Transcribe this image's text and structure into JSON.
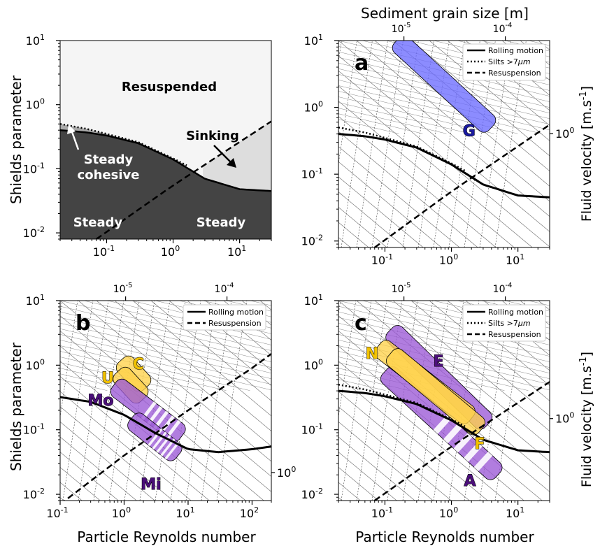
{
  "chart_data": [
    {
      "panel": "regime-diagram",
      "type": "area",
      "ylabel": "Shields parameter",
      "xscale": "log",
      "yscale": "log",
      "xlim": [
        0.02,
        30
      ],
      "ylim": [
        0.008,
        10
      ],
      "xticks": [
        "10^-1",
        "10^0",
        "10^1"
      ],
      "yticks": [
        "10^-2",
        "10^-1",
        "10^0",
        "10^1"
      ],
      "curves": [
        {
          "name": "Rolling motion",
          "style": "solid",
          "x": [
            0.02,
            0.05,
            0.1,
            0.3,
            1,
            3,
            10,
            30
          ],
          "y": [
            0.4,
            0.37,
            0.33,
            0.25,
            0.14,
            0.07,
            0.048,
            0.045
          ]
        },
        {
          "name": "Silts > 7μm",
          "style": "dotted",
          "x": [
            0.02,
            0.05,
            0.1,
            0.3,
            1,
            2
          ],
          "y": [
            0.5,
            0.42,
            0.35,
            0.26,
            0.145,
            0.1
          ]
        },
        {
          "name": "Resuspension",
          "style": "dashed",
          "x": [
            0.07,
            1,
            30
          ],
          "y": [
            0.008,
            0.055,
            0.55
          ]
        }
      ],
      "regions": [
        {
          "label": "Resuspended",
          "color": "#f5f5f5",
          "text_color": "#000000"
        },
        {
          "label": "Sinking",
          "color": "#dddddd",
          "text_color": "#000000"
        },
        {
          "label": "Steady cohesive",
          "color": "#a9a9a9",
          "text_color": "#ffffff"
        },
        {
          "label": "Steady",
          "color": "#444444",
          "text_color": "#ffffff"
        },
        {
          "label": "Steady",
          "color": "#444444",
          "text_color": "#ffffff"
        }
      ]
    },
    {
      "panel": "a",
      "type": "line",
      "top_xlabel": "Sediment grain size [m]",
      "right_ylabel": "Fluid velocity [m.s-1]",
      "right_tick": "10^0",
      "top_ticks": [
        "10^-5",
        "10^-4"
      ],
      "xscale": "log",
      "yscale": "log",
      "xlim": [
        0.02,
        30
      ],
      "ylim": [
        0.008,
        10
      ],
      "xticks": [
        "10^-1",
        "10^0",
        "10^1"
      ],
      "yticks": [
        "10^-2",
        "10^-1",
        "10^0",
        "10^1"
      ],
      "legend": {
        "placement": "top-right",
        "entries": [
          {
            "label": "Rolling motion",
            "style": "solid"
          },
          {
            "label": "Silts >7μm",
            "style": "dotted"
          },
          {
            "label": "Resuspension",
            "style": "dashed"
          }
        ]
      },
      "bands": [
        {
          "label": "G",
          "color": "#6b6bff",
          "x": [
            0.15,
            4
          ],
          "y": [
            10,
            0.5
          ]
        }
      ]
    },
    {
      "panel": "b",
      "type": "line",
      "ylabel": "Shields parameter",
      "xlabel": "Particle Reynolds number",
      "right_tick": "10^0",
      "top_ticks": [
        "10^-5",
        "10^-4"
      ],
      "xscale": "log",
      "yscale": "log",
      "xlim": [
        0.1,
        200
      ],
      "ylim": [
        0.008,
        10
      ],
      "xticks": [
        "10^-1",
        "10^0",
        "10^1",
        "10^2"
      ],
      "yticks": [
        "10^-2",
        "10^-1",
        "10^0",
        "10^1"
      ],
      "legend": {
        "placement": "top-right",
        "entries": [
          {
            "label": "Rolling motion",
            "style": "solid"
          },
          {
            "label": "Resuspension",
            "style": "dashed"
          }
        ]
      },
      "bands": [
        {
          "label": "C",
          "color": "#ffd24a",
          "x": [
            0.9,
            2.2
          ],
          "y": [
            1.2,
            0.45
          ]
        },
        {
          "label": "U",
          "color": "#ffd24a",
          "x": [
            0.8,
            2.0
          ],
          "y": [
            0.8,
            0.3
          ]
        },
        {
          "label": "Mo",
          "color": "#9b59d6",
          "x": [
            0.7,
            8
          ],
          "y": [
            0.5,
            0.08
          ]
        },
        {
          "label": "Mi",
          "color": "#9b59d6",
          "x": [
            1.3,
            7
          ],
          "y": [
            0.15,
            0.04
          ]
        }
      ]
    },
    {
      "panel": "c",
      "type": "line",
      "xlabel": "Particle Reynolds number",
      "right_ylabel": "Fluid velocity [m.s-1]",
      "right_tick": "10^0",
      "top_ticks": [
        "10^-5",
        "10^-4"
      ],
      "xscale": "log",
      "yscale": "log",
      "xlim": [
        0.02,
        30
      ],
      "ylim": [
        0.008,
        10
      ],
      "xticks": [
        "10^-1",
        "10^0",
        "10^1"
      ],
      "yticks": [
        "10^-2",
        "10^-1",
        "10^0",
        "10^1"
      ],
      "legend": {
        "placement": "top-right",
        "entries": [
          {
            "label": "Rolling motion",
            "style": "solid"
          },
          {
            "label": "Silts >7μm",
            "style": "dotted"
          },
          {
            "label": "Resuspension",
            "style": "dashed"
          }
        ]
      },
      "bands": [
        {
          "label": "E",
          "color": "#9b59d6",
          "x": [
            0.12,
            3.5
          ],
          "y": [
            3.5,
            0.12
          ]
        },
        {
          "label": "N",
          "color": "#ffd24a",
          "x": [
            0.08,
            2.0
          ],
          "y": [
            2.0,
            0.15
          ]
        },
        {
          "label": "F",
          "color": "#ffd24a",
          "x": [
            0.12,
            2.8
          ],
          "y": [
            1.5,
            0.1
          ]
        },
        {
          "label": "A",
          "color": "#9b59d6",
          "x": [
            0.1,
            5
          ],
          "y": [
            0.8,
            0.02
          ]
        }
      ]
    }
  ],
  "labels": {
    "resuspended": "Resuspended",
    "sinking": "Sinking",
    "steady_cohesive_1": "Steady",
    "steady_cohesive_2": "cohesive",
    "steady_left": "Steady",
    "steady_right": "Steady",
    "shields_left_top": "Shields parameter",
    "shields_left_bottom": "Shields parameter",
    "sediment_grain": "Sediment grain size [m]",
    "fluid_velocity_top": "Fluid velocity [m.s",
    "fluid_velocity_bottom": "Fluid velocity [m.s",
    "fluid_sup": "-1",
    "fluid_end": "]",
    "reynolds_left": "Particle Reynolds number",
    "reynolds_right": "Particle Reynolds number",
    "panel_a": "a",
    "panel_b": "b",
    "panel_c": "c",
    "legend_rolling": "Rolling motion",
    "legend_silts": "Silts >7",
    "legend_silts_unit": "μm",
    "legend_resusp": "Resuspension"
  },
  "colors": {
    "resuspended": "#f5f5f5",
    "sinking": "#dddddd",
    "steady_cohesive": "#a9a9a9",
    "steady": "#444444",
    "blue_band": "#6b6bff",
    "purple_band": "#9b59d6",
    "yellow_band": "#ffd24a",
    "blue_text": "#1a1aa0",
    "purple_text": "#4b0f7a",
    "yellow_text": "#f2c200"
  }
}
